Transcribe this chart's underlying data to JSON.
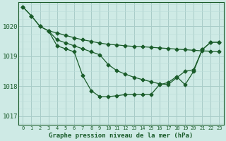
{
  "title": "Graphe pression niveau de la mer (hPa)",
  "ylim": [
    1016.7,
    1020.8
  ],
  "yticks": [
    1017,
    1018,
    1019,
    1020
  ],
  "xlim": [
    -0.5,
    23.5
  ],
  "bg_color": "#ceeae5",
  "grid_color_major": "#a8ccc8",
  "grid_color_minor": "#bcddd9",
  "line_color": "#1a5c2a",
  "line1_x": [
    0,
    1,
    2,
    3,
    4,
    5,
    6,
    7,
    8,
    9,
    10,
    11,
    12,
    13,
    14,
    15,
    16,
    17,
    18,
    19,
    20,
    21,
    22,
    23
  ],
  "line1_y": [
    1020.65,
    1020.35,
    1020.0,
    1019.85,
    1019.78,
    1019.7,
    1019.62,
    1019.55,
    1019.5,
    1019.44,
    1019.4,
    1019.38,
    1019.35,
    1019.33,
    1019.32,
    1019.3,
    1019.28,
    1019.26,
    1019.24,
    1019.22,
    1019.2,
    1019.18,
    1019.17,
    1019.15
  ],
  "line2_x": [
    0,
    1,
    2,
    3,
    4,
    5,
    6,
    7,
    8,
    9,
    10,
    11,
    12,
    13,
    14,
    15,
    16,
    17,
    18,
    19,
    20,
    21,
    22,
    23
  ],
  "line2_y": [
    1020.65,
    1020.35,
    1020.0,
    1019.85,
    1019.35,
    1019.25,
    1019.15,
    1018.35,
    1017.85,
    1017.65,
    1017.65,
    1017.68,
    1017.72,
    1017.72,
    1017.72,
    1017.72,
    1018.05,
    1018.12,
    1018.32,
    1018.05,
    1018.5,
    1019.22,
    1019.47,
    1019.47
  ],
  "line3_x": [
    3,
    4,
    5,
    6,
    7,
    8,
    9,
    10,
    11,
    12,
    13,
    14,
    15,
    16,
    17,
    18,
    19,
    20,
    21,
    22,
    23
  ],
  "line3_y": [
    1019.85,
    1019.55,
    1019.45,
    1019.35,
    1019.25,
    1019.15,
    1019.05,
    1018.72,
    1018.52,
    1018.4,
    1018.3,
    1018.22,
    1018.15,
    1018.08,
    1018.05,
    1018.28,
    1018.5,
    1018.55,
    1019.22,
    1019.47,
    1019.47
  ]
}
